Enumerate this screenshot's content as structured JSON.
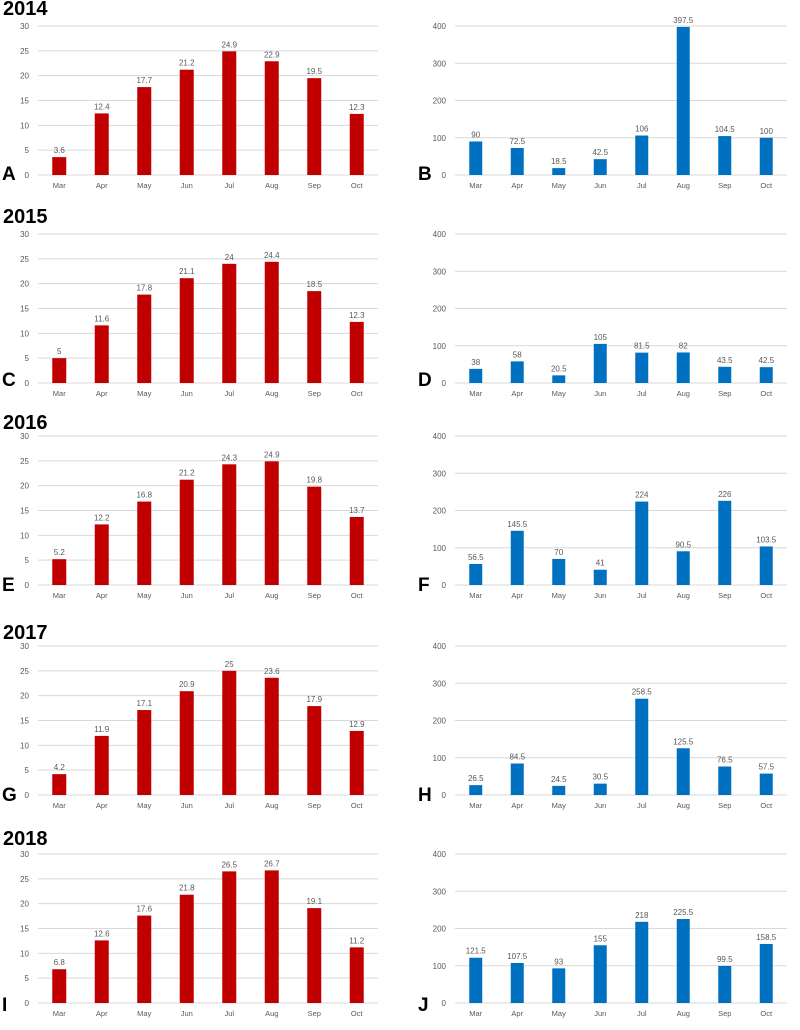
{
  "colors": {
    "temperature": "#c00000",
    "precipitation": "#0070c0",
    "grid": "#d9d9d9",
    "axis_text": "#595959"
  },
  "years": [
    {
      "title": "2014"
    },
    {
      "title": "2015"
    },
    {
      "title": "2016"
    },
    {
      "title": "2017"
    },
    {
      "title": "2018"
    }
  ],
  "panels": [
    {
      "letter": "A"
    },
    {
      "letter": "B"
    },
    {
      "letter": "C"
    },
    {
      "letter": "D"
    },
    {
      "letter": "E"
    },
    {
      "letter": "F"
    },
    {
      "letter": "G"
    },
    {
      "letter": "H"
    },
    {
      "letter": "I"
    },
    {
      "letter": "J"
    }
  ],
  "chart_data": [
    {
      "type": "bar",
      "categories": [
        "Mar",
        "Apr",
        "May",
        "Jun",
        "Jul",
        "Aug",
        "Sep",
        "Oct"
      ],
      "values": [
        3.6,
        12.4,
        17.7,
        21.2,
        24.9,
        22.9,
        19.5,
        12.3
      ],
      "ylim": [
        0,
        30
      ],
      "yticks": [
        0,
        5,
        10,
        15,
        20,
        25,
        30
      ],
      "title": "2014",
      "xlabel": "",
      "ylabel": ""
    },
    {
      "type": "bar",
      "categories": [
        "Mar",
        "Apr",
        "May",
        "Jun",
        "Jul",
        "Aug",
        "Sep",
        "Oct"
      ],
      "values": [
        90,
        72.5,
        18.5,
        42.5,
        106,
        397.5,
        104.5,
        100
      ],
      "ylim": [
        0,
        400
      ],
      "yticks": [
        0,
        100,
        200,
        300,
        400
      ],
      "xlabel": "",
      "ylabel": ""
    },
    {
      "type": "bar",
      "categories": [
        "Mar",
        "Apr",
        "May",
        "Jun",
        "Jul",
        "Aug",
        "Sep",
        "Oct"
      ],
      "values": [
        5,
        11.6,
        17.8,
        21.1,
        24,
        24.4,
        18.5,
        12.3
      ],
      "ylim": [
        0,
        30
      ],
      "yticks": [
        0,
        5,
        10,
        15,
        20,
        25,
        30
      ],
      "title": "2015",
      "xlabel": "",
      "ylabel": ""
    },
    {
      "type": "bar",
      "categories": [
        "Mar",
        "Apr",
        "May",
        "Jun",
        "Jul",
        "Aug",
        "Sep",
        "Oct"
      ],
      "values": [
        38,
        58,
        20.5,
        105,
        81.5,
        82,
        43.5,
        42.5
      ],
      "ylim": [
        0,
        400
      ],
      "yticks": [
        0,
        100,
        200,
        300,
        400
      ],
      "xlabel": "",
      "ylabel": ""
    },
    {
      "type": "bar",
      "categories": [
        "Mar",
        "Apr",
        "May",
        "Jun",
        "Jul",
        "Aug",
        "Sep",
        "Oct"
      ],
      "values": [
        5.2,
        12.2,
        16.8,
        21.2,
        24.3,
        24.9,
        19.8,
        13.7
      ],
      "ylim": [
        0,
        30
      ],
      "yticks": [
        0,
        5,
        10,
        15,
        20,
        25,
        30
      ],
      "title": "2016",
      "xlabel": "",
      "ylabel": ""
    },
    {
      "type": "bar",
      "categories": [
        "Mar",
        "Apr",
        "May",
        "Jun",
        "Jul",
        "Aug",
        "Sep",
        "Oct"
      ],
      "values": [
        56.5,
        145.5,
        70,
        41,
        224,
        90.5,
        226,
        103.5
      ],
      "ylim": [
        0,
        400
      ],
      "yticks": [
        0,
        100,
        200,
        300,
        400
      ],
      "xlabel": "",
      "ylabel": ""
    },
    {
      "type": "bar",
      "categories": [
        "Mar",
        "Apr",
        "May",
        "Jun",
        "Jul",
        "Aug",
        "Sep",
        "Oct"
      ],
      "values": [
        4.2,
        11.9,
        17.1,
        20.9,
        25,
        23.6,
        17.9,
        12.9
      ],
      "ylim": [
        0,
        30
      ],
      "yticks": [
        0,
        5,
        10,
        15,
        20,
        25,
        30
      ],
      "title": "2017",
      "xlabel": "",
      "ylabel": ""
    },
    {
      "type": "bar",
      "categories": [
        "Mar",
        "Apr",
        "May",
        "Jun",
        "Jul",
        "Aug",
        "Sep",
        "Oct"
      ],
      "values": [
        26.5,
        84.5,
        24.5,
        30.5,
        258.5,
        125.5,
        76.5,
        57.5
      ],
      "ylim": [
        0,
        400
      ],
      "yticks": [
        0,
        100,
        200,
        300,
        400
      ],
      "xlabel": "",
      "ylabel": ""
    },
    {
      "type": "bar",
      "categories": [
        "Mar",
        "Apr",
        "May",
        "Jun",
        "Jul",
        "Aug",
        "Sep",
        "Oct"
      ],
      "values": [
        6.8,
        12.6,
        17.6,
        21.8,
        26.5,
        26.7,
        19.1,
        11.2
      ],
      "ylim": [
        0,
        30
      ],
      "yticks": [
        0,
        5,
        10,
        15,
        20,
        25,
        30
      ],
      "title": "2018",
      "xlabel": "",
      "ylabel": ""
    },
    {
      "type": "bar",
      "categories": [
        "Mar",
        "Apr",
        "May",
        "Jun",
        "Jul",
        "Aug",
        "Sep",
        "Oct"
      ],
      "values": [
        121.5,
        107.5,
        93,
        155,
        218,
        225.5,
        99.5,
        158.5
      ],
      "ylim": [
        0,
        400
      ],
      "yticks": [
        0,
        100,
        200,
        300,
        400
      ],
      "xlabel": "",
      "ylabel": ""
    }
  ]
}
